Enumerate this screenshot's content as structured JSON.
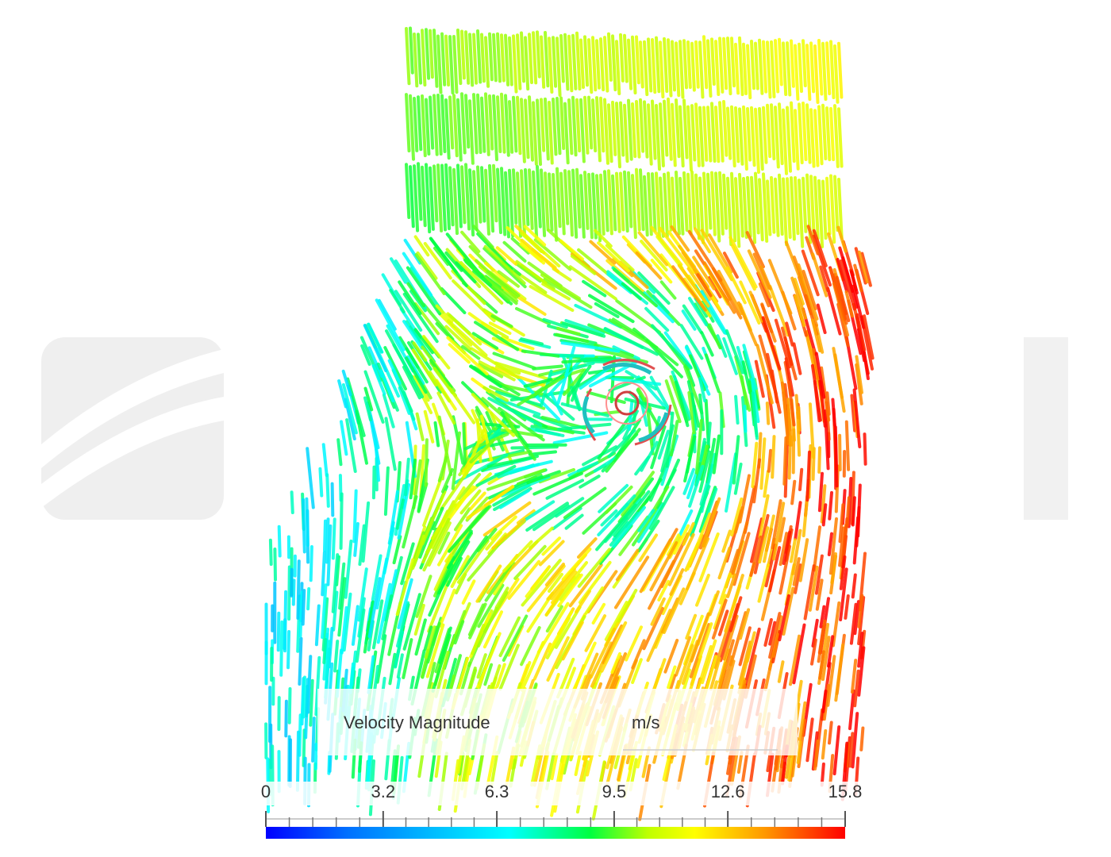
{
  "legend": {
    "title": "Velocity Magnitude",
    "unit": "m/s",
    "ticks": [
      0,
      3.2,
      6.3,
      9.5,
      12.6,
      15.8
    ]
  }
}
